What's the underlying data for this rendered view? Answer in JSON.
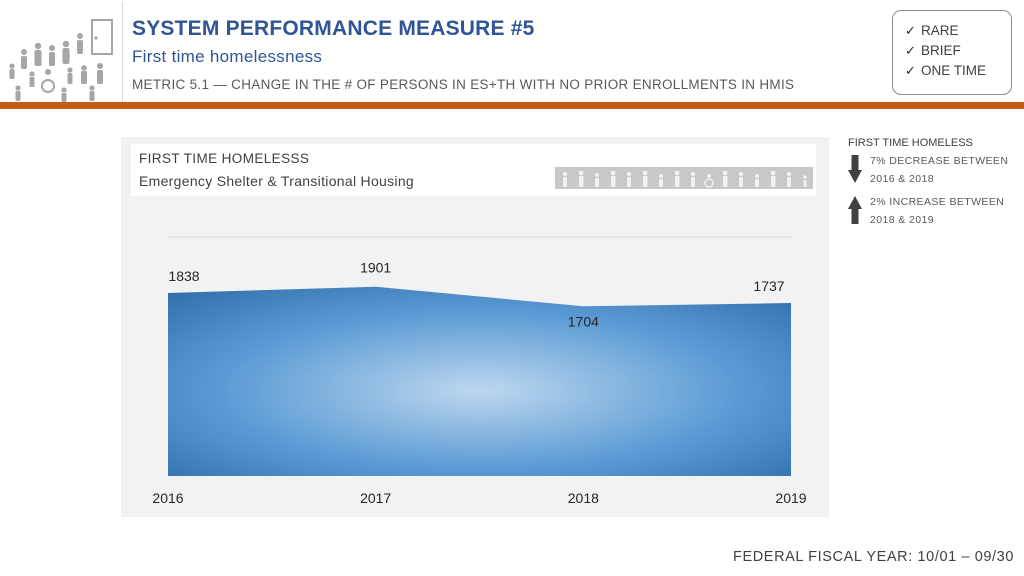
{
  "header": {
    "title": "SYSTEM PERFORMANCE MEASURE #5",
    "subtitle": "First time homelessness",
    "metric": "METRIC 5.1 — CHANGE IN THE # OF PERSONS IN ES+TH WITH NO PRIOR ENROLLMENTS IN HMIS"
  },
  "checklist": {
    "check_glyph": "✓",
    "items": [
      "RARE",
      "BRIEF",
      "ONE TIME"
    ]
  },
  "chart_data": {
    "type": "area",
    "title": "FIRST TIME HOMELESSS",
    "subtitle": "Emergency Shelter & Transitional Housing",
    "categories": [
      "2016",
      "2017",
      "2018",
      "2019"
    ],
    "values": [
      1838,
      1901,
      1704,
      1737
    ],
    "ylim": [
      0,
      2400
    ],
    "grid": true,
    "legend": "none",
    "xlabel": "",
    "ylabel": "",
    "colors": {
      "dark": "#2e6aa8",
      "mid": "#5b9bd5",
      "light": "#bdd7ee"
    }
  },
  "callouts": {
    "title": "FIRST TIME HOMELESS",
    "decrease_text": [
      "7% DECREASE BETWEEN",
      "2016 & 2018"
    ],
    "increase_text": [
      "2% INCREASE BETWEEN",
      "2018 & 2019"
    ],
    "arrow_color": "#404040",
    "decrease_icon": "arrow-down-icon",
    "increase_icon": "arrow-up-icon"
  },
  "footer": {
    "fiscal_year": "FEDERAL FISCAL YEAR:  10/01 – 09/30"
  },
  "theme": {
    "accent": "#c55a11",
    "title_color": "#2f5597"
  }
}
